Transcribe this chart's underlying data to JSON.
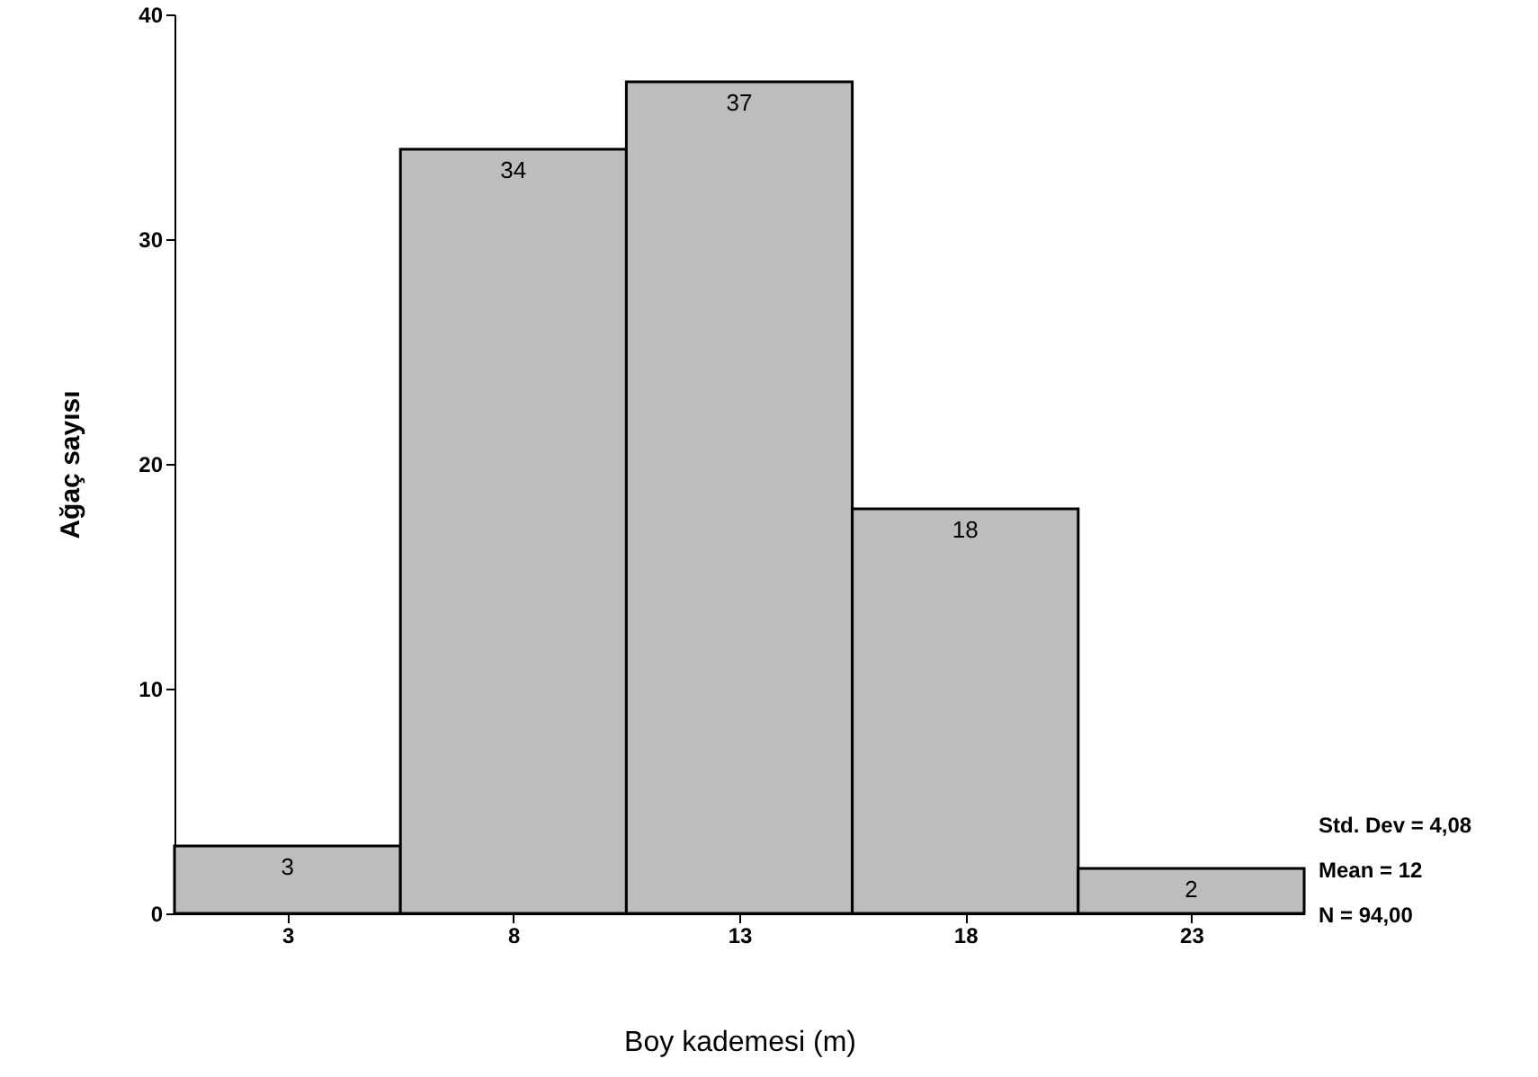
{
  "chart_data": {
    "type": "histogram",
    "xlabel": "Boy kademesi (m)",
    "ylabel": "Ağaç sayısı",
    "bins": [
      0.5,
      5.5,
      10.5,
      15.5,
      20.5,
      25.5
    ],
    "values": [
      3,
      34,
      37,
      18,
      2
    ],
    "color": "#bdbdbd",
    "xlim": [
      0.5,
      25.5
    ],
    "xticks": [
      3,
      8,
      13,
      18,
      23
    ],
    "ylim": [
      0,
      40
    ],
    "yticks": [
      0,
      10,
      20,
      30,
      40
    ],
    "data_labels": true,
    "grid": false,
    "annotations": [
      "Std. Dev = 4,08",
      "Mean = 12",
      "N = 94,00"
    ]
  }
}
